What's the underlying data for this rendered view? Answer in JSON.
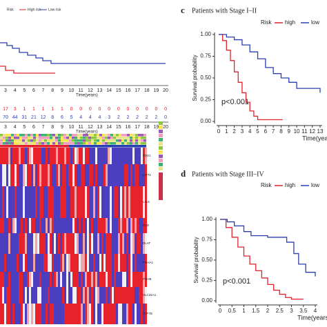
{
  "left_panel": {
    "legend_title": "Risk",
    "legend_high": "High risk",
    "legend_low": "Low risk",
    "time_ticks": [
      3,
      4,
      5,
      6,
      7,
      8,
      9,
      10,
      11,
      12,
      13,
      14,
      15,
      16,
      17,
      18,
      19,
      20
    ],
    "time_label": "Time(years)",
    "risk_high_counts": [
      17,
      3,
      1,
      1,
      1,
      1,
      1,
      0,
      0,
      0,
      0,
      0,
      0,
      0,
      0,
      0,
      0,
      0
    ],
    "risk_low_counts": [
      70,
      44,
      31,
      21,
      12,
      8,
      6,
      5,
      4,
      4,
      4,
      3,
      2,
      2,
      2,
      2,
      2,
      0
    ],
    "genes": [
      "FDX1",
      "LIPT1",
      "LIAS",
      "DLD",
      "DLAT",
      "PDHA1",
      "PDHB",
      "SLC31A1",
      "ATP7B"
    ]
  },
  "chart_data": [
    {
      "type": "line",
      "panel": "c",
      "title": "Patients with Stage I–II",
      "legend_title": "Risk",
      "xlabel": "Time(years)",
      "ylabel": "Survival probability",
      "annotation": "p<0.001",
      "xlim": [
        0,
        13
      ],
      "ylim": [
        0,
        1
      ],
      "xticks": [
        0,
        1,
        2,
        3,
        4,
        5,
        6,
        7,
        8,
        9,
        10,
        11,
        12,
        13
      ],
      "yticks": [
        {
          "value": 0,
          "label": "0.00"
        },
        0.25,
        {
          "value": 0.5,
          "label": "0.50"
        },
        0.75,
        {
          "value": 1,
          "label": "1.00"
        }
      ],
      "series": [
        {
          "name": "high",
          "color": "#e0202a",
          "x": [
            0,
            0.5,
            1,
            1.5,
            2,
            2.5,
            3,
            3.5,
            4,
            4.5,
            5,
            8.2
          ],
          "values": [
            1,
            0.93,
            0.82,
            0.7,
            0.57,
            0.45,
            0.33,
            0.22,
            0.12,
            0.06,
            0.02,
            0.02
          ]
        },
        {
          "name": "low",
          "color": "#2a3fb0",
          "x": [
            0,
            1,
            2,
            3,
            4,
            5,
            6,
            7,
            8,
            9,
            10,
            11,
            12,
            13
          ],
          "values": [
            1,
            0.97,
            0.94,
            0.88,
            0.8,
            0.72,
            0.62,
            0.55,
            0.5,
            0.45,
            0.38,
            0.38,
            0.38,
            0.33
          ]
        }
      ]
    },
    {
      "type": "line",
      "panel": "d",
      "title": "Patients with Stage III–IV",
      "legend_title": "Risk",
      "xlabel": "Time(years)",
      "ylabel": "Survival probability",
      "annotation": "p<0.001",
      "xlim": [
        0,
        4
      ],
      "ylim": [
        0,
        1
      ],
      "xticks": [
        0,
        0.5,
        1,
        1.5,
        2,
        2.5,
        3,
        3.5,
        4
      ],
      "yticks": [
        {
          "value": 0,
          "label": "0.00"
        },
        0.25,
        {
          "value": 0.5,
          "label": "0.50"
        },
        0.75,
        {
          "value": 1,
          "label": "1.00"
        }
      ],
      "series": [
        {
          "name": "high",
          "color": "#e0202a",
          "x": [
            0,
            0.25,
            0.5,
            0.75,
            1,
            1.25,
            1.5,
            1.75,
            2,
            2.25,
            2.5,
            2.75,
            3,
            3.5
          ],
          "values": [
            1,
            0.9,
            0.78,
            0.66,
            0.55,
            0.45,
            0.37,
            0.28,
            0.2,
            0.13,
            0.08,
            0.04,
            0.02,
            0.02
          ]
        },
        {
          "name": "low",
          "color": "#2a3fb0",
          "x": [
            0,
            0.3,
            0.6,
            1,
            1.3,
            2,
            2.5,
            2.8,
            3.1,
            3.3,
            3.6,
            4
          ],
          "values": [
            1,
            0.97,
            0.92,
            0.85,
            0.8,
            0.78,
            0.78,
            0.72,
            0.58,
            0.45,
            0.35,
            0.3
          ]
        }
      ]
    }
  ]
}
